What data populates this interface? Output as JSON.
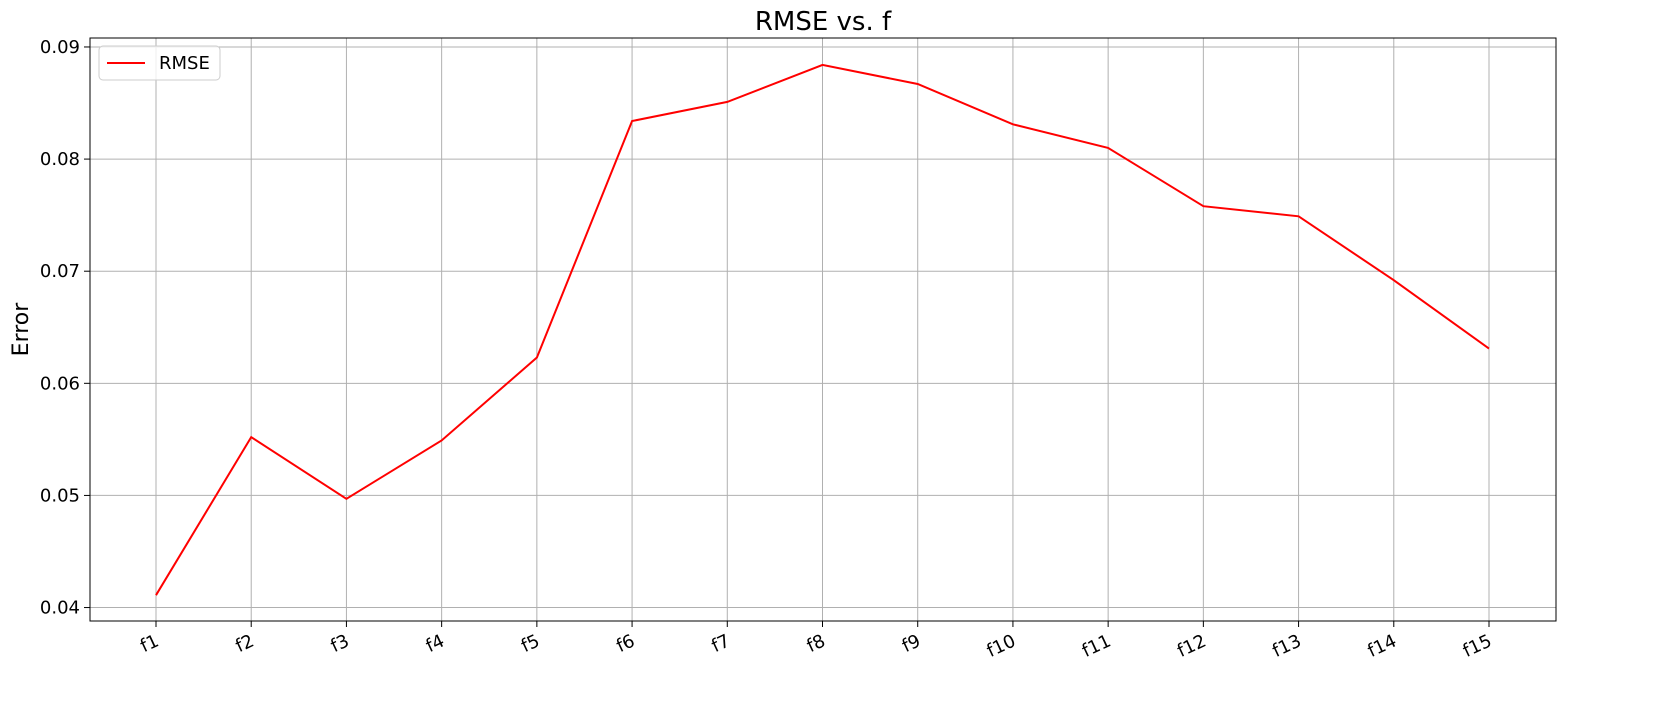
{
  "chart_data": {
    "type": "line",
    "title": "RMSE vs. f",
    "xlabel": "",
    "ylabel": "Error",
    "categories": [
      "f1",
      "f2",
      "f3",
      "f4",
      "f5",
      "f6",
      "f7",
      "f8",
      "f9",
      "f10",
      "f11",
      "f12",
      "f13",
      "f14",
      "f15"
    ],
    "series": [
      {
        "name": "RMSE",
        "color": "#ff0000",
        "values": [
          0.0411,
          0.0552,
          0.0497,
          0.0549,
          0.0623,
          0.0834,
          0.0851,
          0.0884,
          0.0867,
          0.0831,
          0.081,
          0.0758,
          0.0749,
          0.0692,
          0.0631
        ]
      }
    ],
    "ylim": [
      0.0388,
      0.0908
    ],
    "yticks": [
      0.04,
      0.05,
      0.06,
      0.07,
      0.08,
      0.09
    ],
    "ytick_labels": [
      "0.04",
      "0.05",
      "0.06",
      "0.07",
      "0.08",
      "0.09"
    ],
    "grid": true,
    "legend_position": "upper left"
  }
}
